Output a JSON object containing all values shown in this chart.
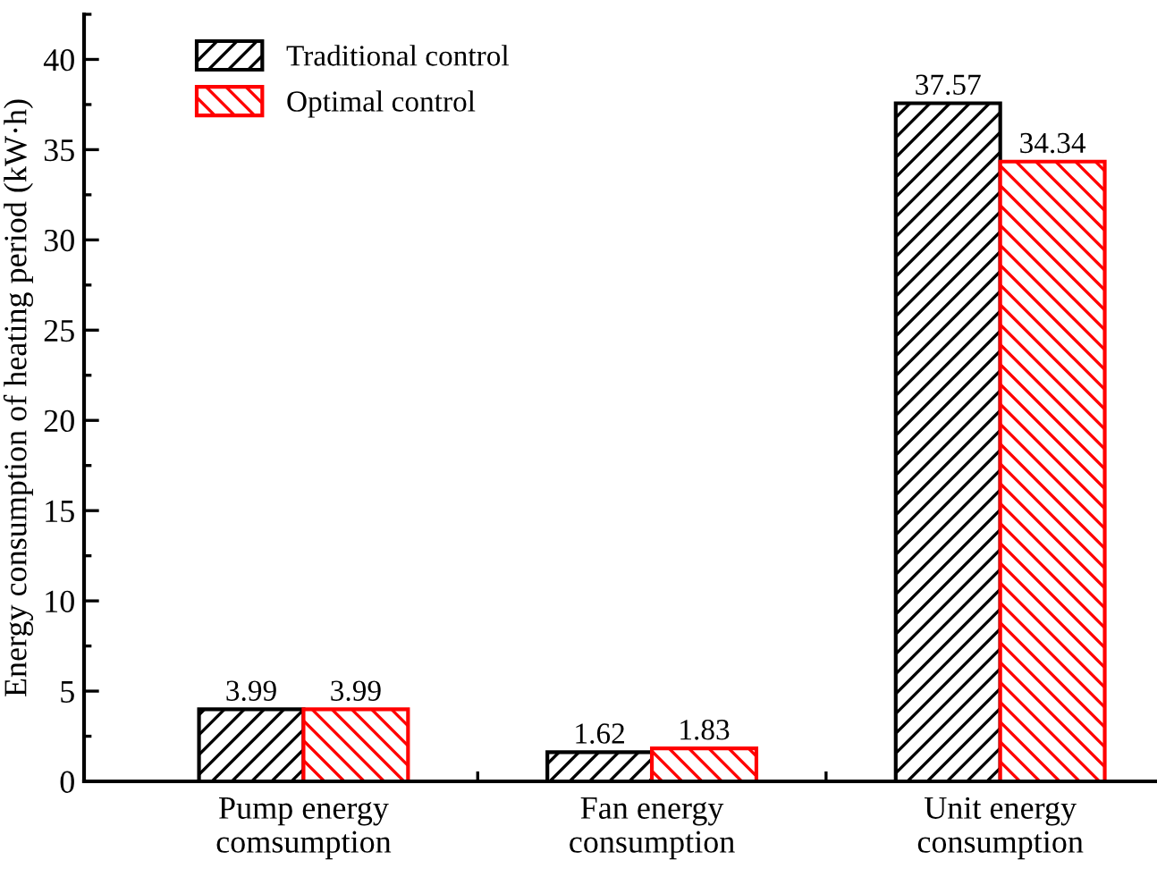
{
  "chart_data": {
    "type": "bar",
    "ylabel": "Energy consumption of heating period (kW·h)",
    "categories": [
      "Pump energy\ncomsumption",
      "Fan energy\nconsumption",
      "Unit energy\nconsumption"
    ],
    "series": [
      {
        "name": "Traditional control",
        "color": "#000000",
        "values": [
          3.99,
          1.62,
          37.57
        ]
      },
      {
        "name": "Optimal control",
        "color": "#ff0000",
        "values": [
          3.99,
          1.83,
          34.34
        ]
      }
    ],
    "ylim": [
      0,
      42.5
    ],
    "yticks": [
      0,
      5,
      10,
      15,
      20,
      25,
      30,
      35,
      40
    ],
    "data_labels": true,
    "legend": "top left",
    "grid": false
  }
}
